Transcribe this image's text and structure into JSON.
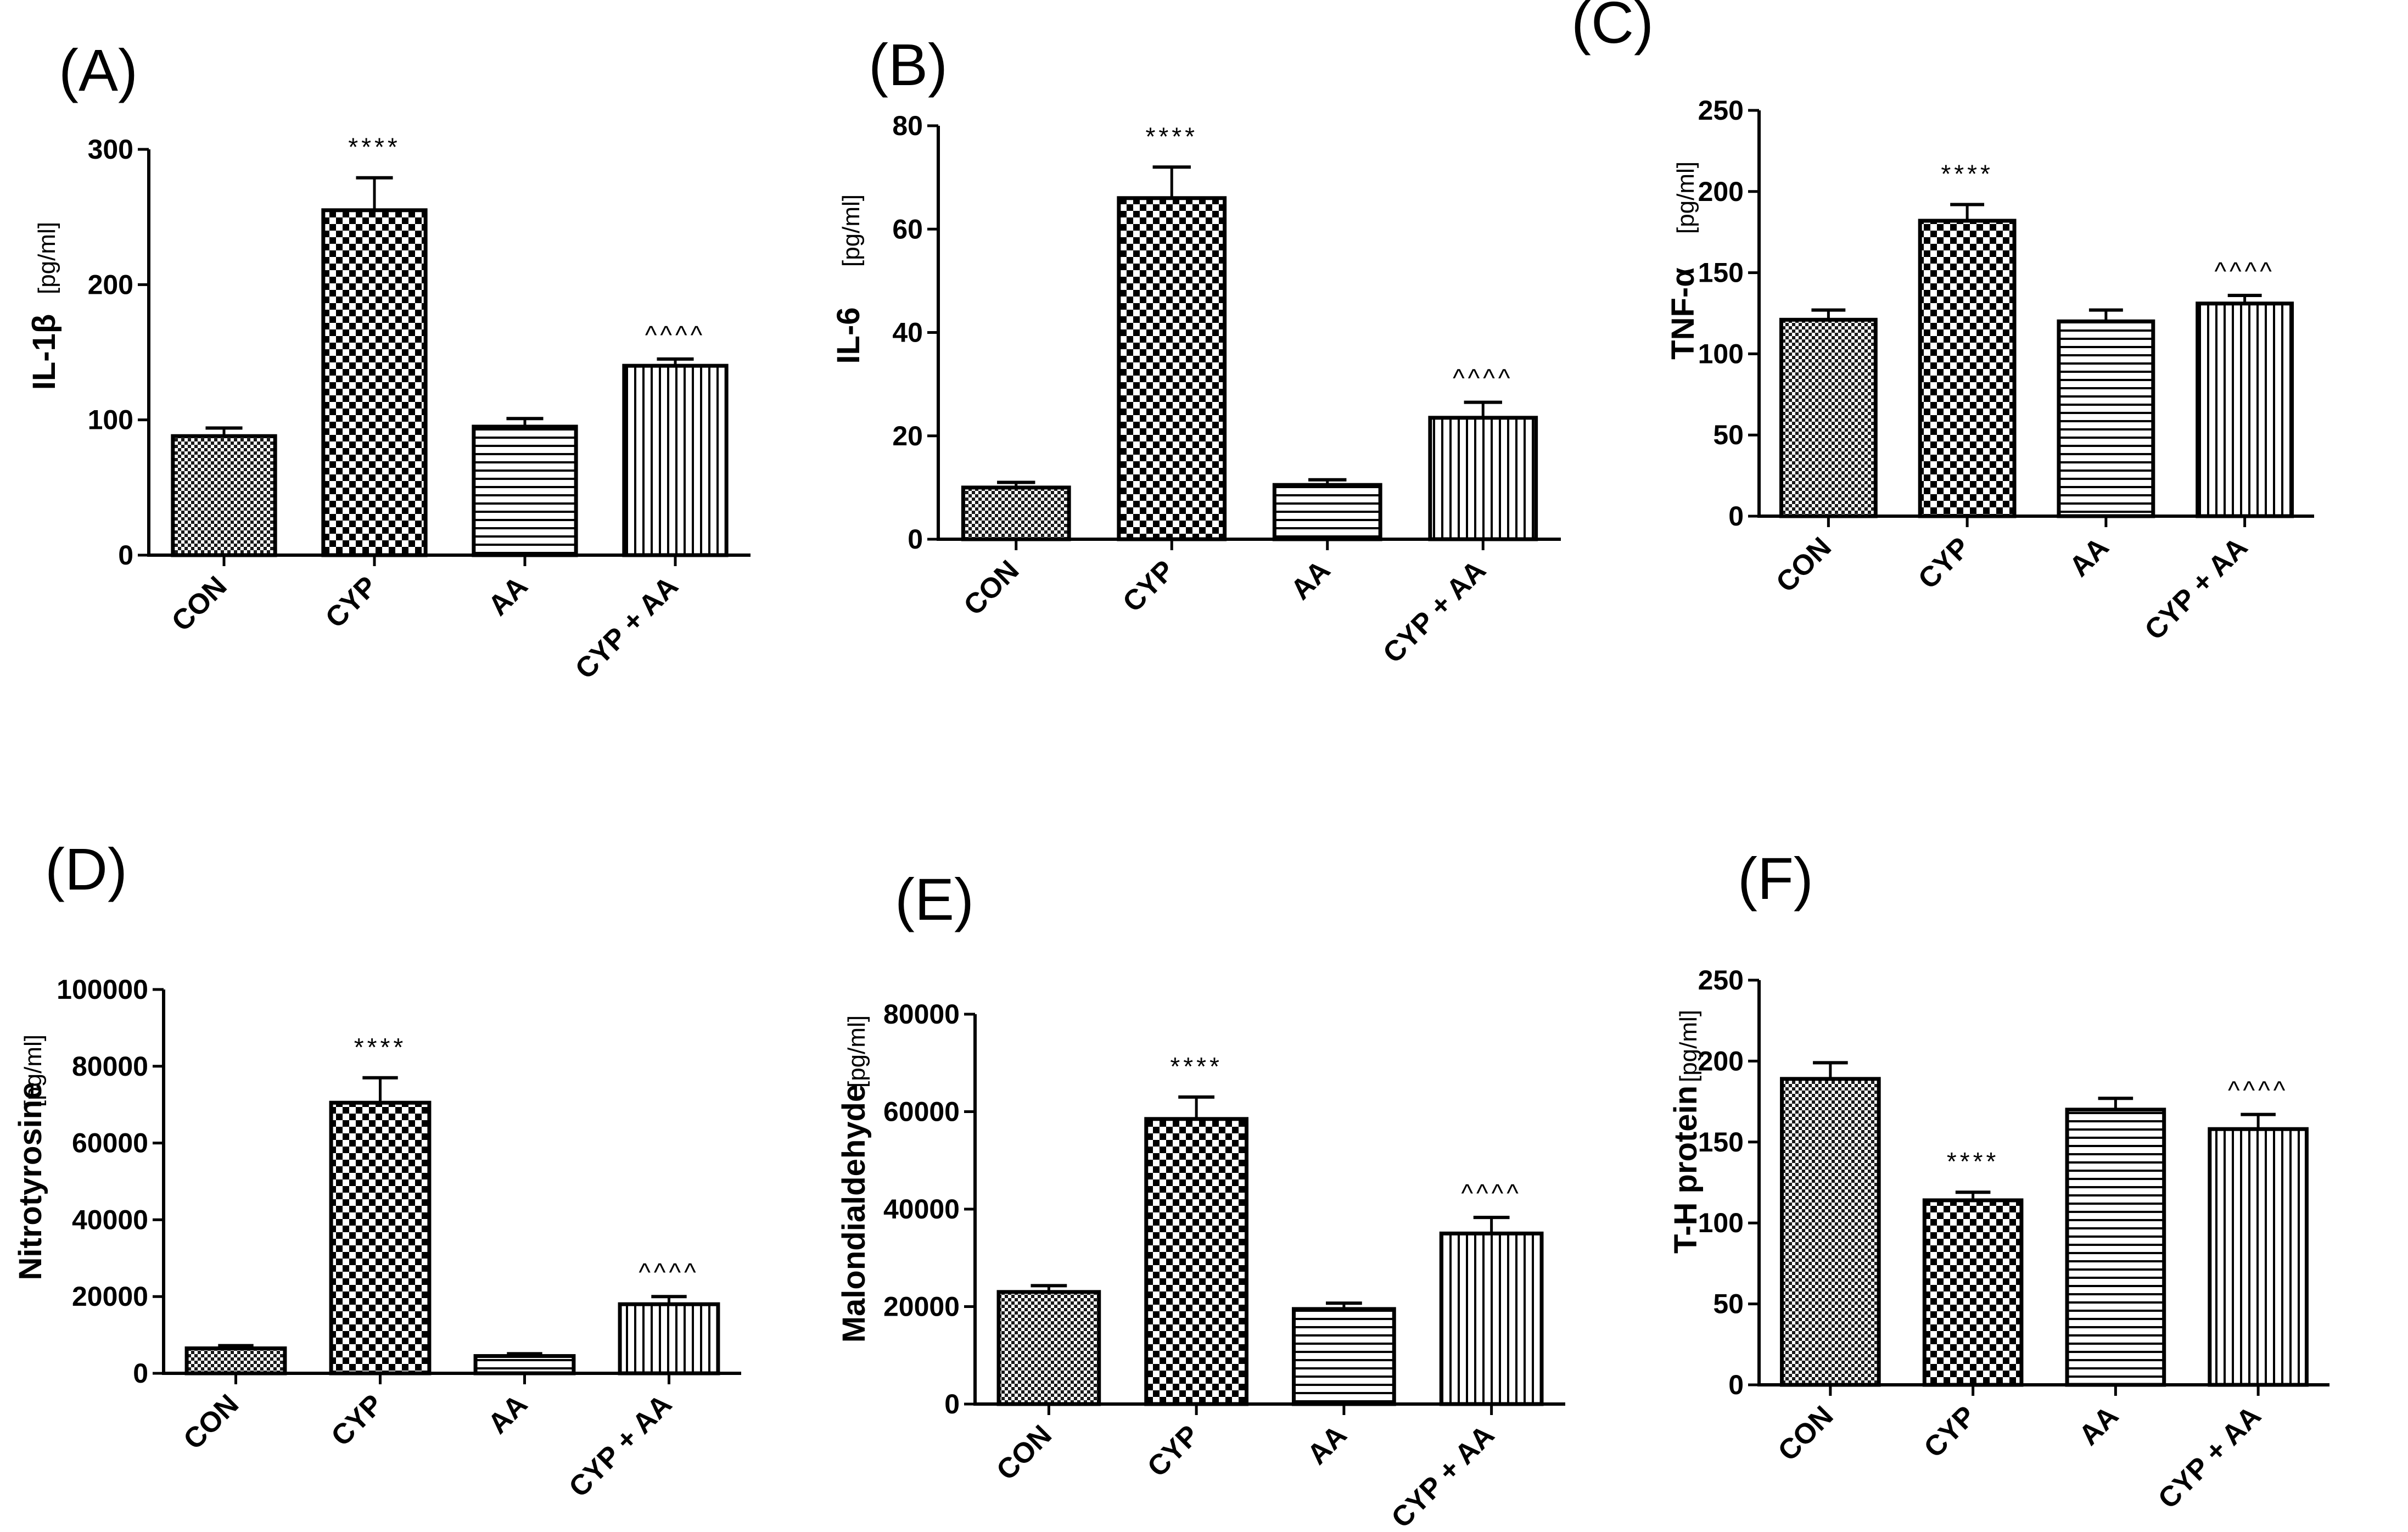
{
  "chart_data": [
    {
      "type": "bar",
      "panel": "(A)",
      "ylabel": "IL-1β",
      "unit": "[pg/ml]",
      "categories": [
        "CON",
        "CYP",
        "AA",
        "CYP + AA"
      ],
      "values": [
        88,
        255,
        95,
        140
      ],
      "errors": [
        6,
        24,
        6,
        5
      ],
      "patterns": [
        "fine-check",
        "checker",
        "hlines",
        "vlines"
      ],
      "ylim": [
        0,
        300
      ],
      "yticks": [
        "0",
        "100",
        "200",
        "300"
      ],
      "annotations": [
        "",
        "****",
        "",
        "^^^^"
      ]
    },
    {
      "type": "bar",
      "panel": "(B)",
      "ylabel": "IL-6",
      "unit": "[pg/ml]",
      "categories": [
        "CON",
        "CYP",
        "AA",
        "CYP + AA"
      ],
      "values": [
        10,
        66,
        10.5,
        23.5
      ],
      "errors": [
        1,
        6,
        1,
        3
      ],
      "patterns": [
        "fine-check",
        "checker",
        "hlines",
        "vlines"
      ],
      "ylim": [
        0,
        80
      ],
      "yticks": [
        "0",
        "20",
        "40",
        "60",
        "80"
      ],
      "annotations": [
        "",
        "****",
        "",
        "^^^^"
      ]
    },
    {
      "type": "bar",
      "panel": "(C)",
      "ylabel": "TNF-α",
      "unit": "[pg/ml]",
      "categories": [
        "CON",
        "CYP",
        "AA",
        "CYP + AA"
      ],
      "values": [
        121,
        182,
        120,
        131
      ],
      "errors": [
        6,
        10,
        7,
        5
      ],
      "patterns": [
        "fine-check",
        "checker",
        "hlines",
        "vlines"
      ],
      "ylim": [
        0,
        250
      ],
      "yticks": [
        "0",
        "50",
        "100",
        "150",
        "200",
        "250"
      ],
      "annotations": [
        "",
        "****",
        "",
        "^^^^"
      ]
    },
    {
      "type": "bar",
      "panel": "(D)",
      "ylabel": "Nitrotyrosine",
      "unit": "[pg/ml]",
      "categories": [
        "CON",
        "CYP",
        "AA",
        "CYP + AA"
      ],
      "values": [
        6500,
        70500,
        4500,
        18000
      ],
      "errors": [
        700,
        6500,
        600,
        2000
      ],
      "patterns": [
        "fine-check",
        "checker",
        "hlines",
        "vlines"
      ],
      "ylim": [
        0,
        100000
      ],
      "yticks": [
        "0",
        "20000",
        "40000",
        "60000",
        "80000",
        "100000"
      ],
      "annotations": [
        "",
        "****",
        "",
        "^^^^"
      ]
    },
    {
      "type": "bar",
      "panel": "(E)",
      "ylabel": "Malondialdehyde",
      "unit": "[pg/ml]",
      "categories": [
        "CON",
        "CYP",
        "AA",
        "CYP + AA"
      ],
      "values": [
        23000,
        58500,
        19500,
        35000
      ],
      "errors": [
        1300,
        4500,
        1200,
        3300
      ],
      "patterns": [
        "fine-check",
        "checker",
        "hlines",
        "vlines"
      ],
      "ylim": [
        0,
        80000
      ],
      "yticks": [
        "0",
        "20000",
        "40000",
        "60000",
        "80000"
      ],
      "annotations": [
        "",
        "****",
        "",
        "^^^^"
      ]
    },
    {
      "type": "bar",
      "panel": "(F)",
      "ylabel": "T-H protein",
      "unit": "[pg/ml]",
      "categories": [
        "CON",
        "CYP",
        "AA",
        "CYP + AA"
      ],
      "values": [
        189,
        114,
        170,
        158
      ],
      "errors": [
        10,
        5,
        7,
        9
      ],
      "patterns": [
        "fine-check",
        "checker",
        "hlines",
        "vlines"
      ],
      "ylim": [
        0,
        250
      ],
      "yticks": [
        "0",
        "50",
        "100",
        "150",
        "200",
        "250"
      ],
      "annotations": [
        "",
        "****",
        "",
        "^^^^"
      ]
    }
  ]
}
